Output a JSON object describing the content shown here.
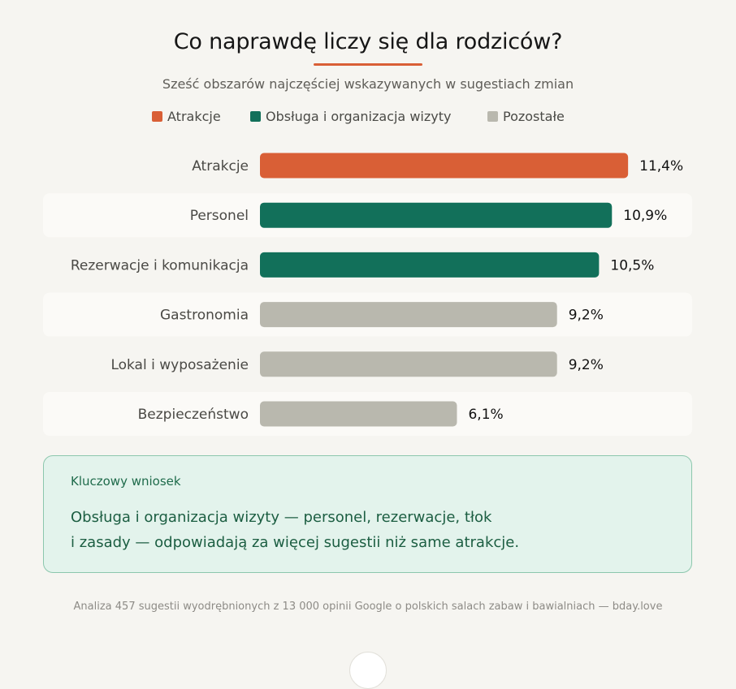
{
  "title": "Co naprawdę liczy się dla rodziców?",
  "subtitle": "Sześć obszarów najczęściej wskazywanych w sugestiach zmian",
  "legend": [
    {
      "label": "Atrakcje",
      "color": "#d95f36"
    },
    {
      "label": "Obsługa i organizacja wizyty",
      "color": "#12705a"
    },
    {
      "label": "Pozostałe",
      "color": "#b9b8ae"
    }
  ],
  "chart_data": {
    "type": "bar",
    "orientation": "horizontal",
    "categories": [
      "Atrakcje",
      "Personel",
      "Rezerwacje i komunikacja",
      "Gastronomia",
      "Lokal i wyposażenie",
      "Bezpieczeństwo"
    ],
    "values": [
      11.4,
      10.9,
      10.5,
      9.2,
      9.2,
      6.1
    ],
    "value_labels": [
      "11,4%",
      "10,9%",
      "10,5%",
      "9,2%",
      "9,2%",
      "6,1%"
    ],
    "groups": [
      "Atrakcje",
      "Obsługa i organizacja wizyty",
      "Obsługa i organizacja wizyty",
      "Pozostałe",
      "Pozostałe",
      "Pozostałe"
    ],
    "colors": [
      "#d95f36",
      "#12705a",
      "#12705a",
      "#b9b8ae",
      "#b9b8ae",
      "#b9b8ae"
    ],
    "unit": "%",
    "grid": false,
    "legend_position": "top"
  },
  "callout": {
    "label": "Kluczowy wniosek",
    "text_line1": "Obsługa i organizacja wizyty — personel, rezerwacje, tłok",
    "text_line2": "i zasady — odpowiadają za więcej sugestii niż same atrakcje."
  },
  "footer": "Analiza 457 sugestii wyodrębnionych z 13 000 opinii Google o polskich salach zabaw i bawialniach — bday.love"
}
